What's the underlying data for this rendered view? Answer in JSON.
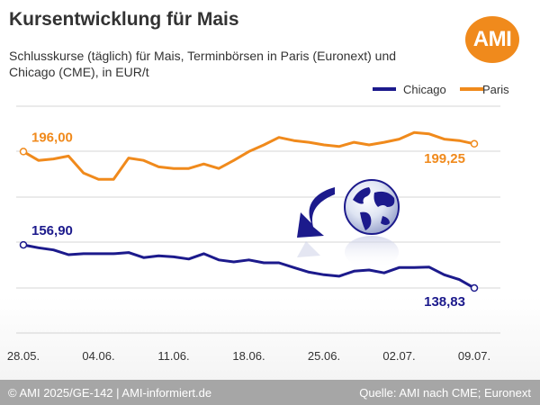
{
  "header": {
    "title": "Kursentwicklung für Mais",
    "subtitle": "Schlusskurse (täglich) für Mais, Terminbörsen in Paris (Euronext) und Chicago (CME), in EUR/t",
    "logo_text": "AMI"
  },
  "footer": {
    "left_text": "© AMI 2025/GE-142 | AMI-informiert.de",
    "right_text": "Quelle: AMI nach CME; Euronext"
  },
  "colors": {
    "chicago": "#1c1a8c",
    "paris": "#f08a1c",
    "logo": "#f08a1c",
    "footer": "#a6a6a6"
  },
  "chart_data": {
    "type": "line",
    "title": "Kursentwicklung für Mais",
    "subtitle": "Schlusskurse (täglich) für Mais, Terminbörsen in Paris (Euronext) und Chicago (CME), in EUR/t",
    "xlabel": "",
    "ylabel": "",
    "ylim": [
      120,
      215
    ],
    "grid": "horizontal",
    "legend": "top-right",
    "x_ticks": [
      "28.05.",
      "04.06.",
      "11.06.",
      "18.06.",
      "25.06.",
      "02.07.",
      "09.07."
    ],
    "x": [
      "28.05.",
      "29.05.",
      "30.05.",
      "02.06.",
      "03.06.",
      "04.06.",
      "05.06.",
      "06.06.",
      "09.06.",
      "10.06.",
      "11.06.",
      "12.06.",
      "13.06.",
      "16.06.",
      "17.06.",
      "18.06.",
      "19.06.",
      "20.06.",
      "23.06.",
      "24.06.",
      "25.06.",
      "26.06.",
      "27.06.",
      "30.06.",
      "01.07.",
      "02.07.",
      "03.07.",
      "04.07.",
      "07.07.",
      "08.07.",
      "09.07."
    ],
    "series": [
      {
        "name": "Paris",
        "values": [
          196.0,
          192.3,
          192.9,
          194.1,
          187.0,
          184.4,
          184.4,
          193.3,
          192.3,
          189.6,
          188.9,
          188.9,
          190.8,
          188.9,
          192.3,
          196.0,
          198.8,
          201.9,
          200.6,
          199.9,
          198.8,
          198.1,
          199.9,
          198.8,
          199.9,
          201.2,
          204.0,
          203.4,
          201.2,
          200.6,
          199.25
        ],
        "start_label": "196,00",
        "end_label": "199,25"
      },
      {
        "name": "Chicago",
        "values": [
          156.9,
          155.7,
          154.8,
          152.8,
          153.2,
          153.2,
          153.2,
          153.7,
          151.6,
          152.3,
          151.9,
          151.0,
          153.2,
          150.6,
          149.8,
          150.6,
          149.4,
          149.4,
          147.4,
          145.5,
          144.4,
          143.8,
          145.9,
          146.4,
          145.2,
          147.4,
          147.4,
          147.6,
          144.4,
          142.4,
          138.83
        ],
        "start_label": "156,90",
        "end_label": "138,83"
      }
    ]
  }
}
